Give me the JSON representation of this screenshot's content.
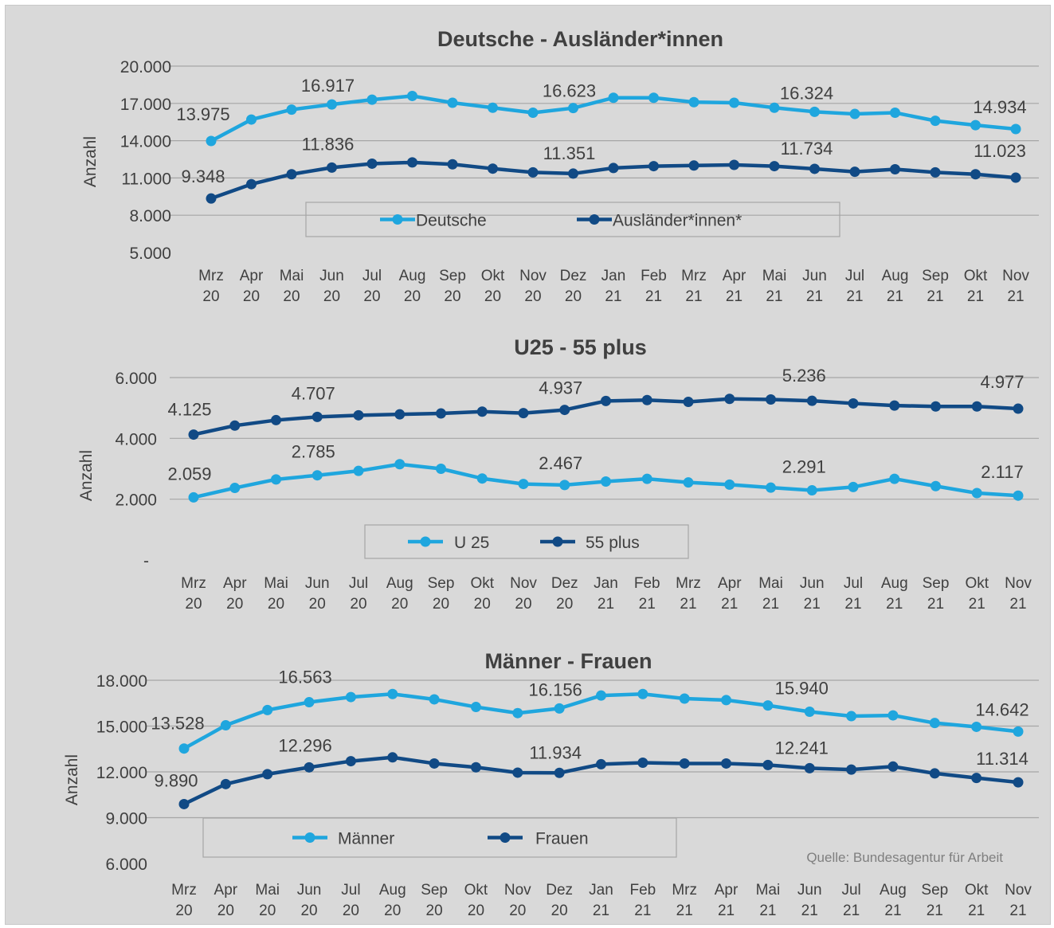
{
  "source_note": "Quelle: Bundesagentur für Arbeit",
  "colors": {
    "light": "#1fa6de",
    "dark": "#114a85",
    "grid": "#a6a6a6",
    "text": "#404040"
  },
  "chart_data": [
    {
      "type": "line",
      "title": "Deutsche - Ausländer*innen",
      "ylabel": "Anzahl",
      "ylim": [
        5000,
        20000
      ],
      "yticks": [
        "5.000",
        "8.000",
        "11.000",
        "14.000",
        "17.000",
        "20.000"
      ],
      "ytick_values": [
        5000,
        8000,
        11000,
        14000,
        17000,
        20000
      ],
      "categories": [
        [
          "Mrz",
          "20"
        ],
        [
          "Apr",
          "20"
        ],
        [
          "Mai",
          "20"
        ],
        [
          "Jun",
          "20"
        ],
        [
          "Jul",
          "20"
        ],
        [
          "Aug",
          "20"
        ],
        [
          "Sep",
          "20"
        ],
        [
          "Okt",
          "20"
        ],
        [
          "Nov",
          "20"
        ],
        [
          "Dez",
          "20"
        ],
        [
          "Jan",
          "21"
        ],
        [
          "Feb",
          "21"
        ],
        [
          "Mrz",
          "21"
        ],
        [
          "Apr",
          "21"
        ],
        [
          "Mai",
          "21"
        ],
        [
          "Jun",
          "21"
        ],
        [
          "Jul",
          "21"
        ],
        [
          "Aug",
          "21"
        ],
        [
          "Sep",
          "21"
        ],
        [
          "Okt",
          "21"
        ],
        [
          "Nov",
          "21"
        ]
      ],
      "grid": true,
      "legend": "bottom-center",
      "series": [
        {
          "name": "Deutsche",
          "color": "light",
          "values": [
            13975,
            15700,
            16500,
            16917,
            17300,
            17600,
            17050,
            16650,
            16250,
            16623,
            17450,
            17450,
            17100,
            17050,
            16650,
            16324,
            16150,
            16250,
            15600,
            15250,
            14934
          ],
          "labels": [
            {
              "i": 0,
              "text": "13.975"
            },
            {
              "i": 3,
              "text": "16.917"
            },
            {
              "i": 9,
              "text": "16.623"
            },
            {
              "i": 15,
              "text": "16.324"
            },
            {
              "i": 20,
              "text": "14.934"
            }
          ]
        },
        {
          "name": "Ausländer*innen*",
          "color": "dark",
          "values": [
            9348,
            10500,
            11300,
            11836,
            12150,
            12250,
            12100,
            11750,
            11450,
            11351,
            11800,
            11950,
            12000,
            12050,
            11950,
            11734,
            11500,
            11700,
            11450,
            11300,
            11023
          ],
          "labels": [
            {
              "i": 0,
              "text": "9.348"
            },
            {
              "i": 3,
              "text": "11.836"
            },
            {
              "i": 9,
              "text": "11.351"
            },
            {
              "i": 15,
              "text": "11.734"
            },
            {
              "i": 20,
              "text": "11.023"
            }
          ]
        }
      ]
    },
    {
      "type": "line",
      "title": "U25 - 55 plus",
      "ylabel": "Anzahl",
      "ylim": [
        0,
        6000
      ],
      "yticks": [
        "-",
        "2.000",
        "4.000",
        "6.000"
      ],
      "ytick_values": [
        0,
        2000,
        4000,
        6000
      ],
      "categories": [
        [
          "Mrz",
          "20"
        ],
        [
          "Apr",
          "20"
        ],
        [
          "Mai",
          "20"
        ],
        [
          "Jun",
          "20"
        ],
        [
          "Jul",
          "20"
        ],
        [
          "Aug",
          "20"
        ],
        [
          "Sep",
          "20"
        ],
        [
          "Okt",
          "20"
        ],
        [
          "Nov",
          "20"
        ],
        [
          "Dez",
          "20"
        ],
        [
          "Jan",
          "21"
        ],
        [
          "Feb",
          "21"
        ],
        [
          "Mrz",
          "21"
        ],
        [
          "Apr",
          "21"
        ],
        [
          "Mai",
          "21"
        ],
        [
          "Jun",
          "21"
        ],
        [
          "Jul",
          "21"
        ],
        [
          "Aug",
          "21"
        ],
        [
          "Sep",
          "21"
        ],
        [
          "Okt",
          "21"
        ],
        [
          "Nov",
          "21"
        ]
      ],
      "grid": true,
      "legend": "bottom-center",
      "series": [
        {
          "name": "U 25",
          "color": "light",
          "values": [
            2059,
            2370,
            2650,
            2785,
            2930,
            3150,
            3000,
            2680,
            2500,
            2467,
            2580,
            2670,
            2550,
            2480,
            2380,
            2291,
            2400,
            2670,
            2430,
            2200,
            2117
          ],
          "labels": [
            {
              "i": 0,
              "text": "2.059"
            },
            {
              "i": 3,
              "text": "2.785"
            },
            {
              "i": 9,
              "text": "2.467"
            },
            {
              "i": 15,
              "text": "2.291"
            },
            {
              "i": 20,
              "text": "2.117"
            }
          ]
        },
        {
          "name": "55 plus",
          "color": "dark",
          "values": [
            4125,
            4420,
            4600,
            4707,
            4760,
            4790,
            4820,
            4880,
            4830,
            4937,
            5230,
            5260,
            5200,
            5300,
            5280,
            5236,
            5150,
            5080,
            5050,
            5050,
            4977
          ],
          "labels": [
            {
              "i": 0,
              "text": "4.125"
            },
            {
              "i": 3,
              "text": "4.707"
            },
            {
              "i": 9,
              "text": "4.937"
            },
            {
              "i": 15,
              "text": "5.236"
            },
            {
              "i": 20,
              "text": "4.977"
            }
          ]
        }
      ]
    },
    {
      "type": "line",
      "title": "Männer - Frauen",
      "ylabel": "Anzahl",
      "ylim": [
        6000,
        18000
      ],
      "yticks": [
        "6.000",
        "9.000",
        "12.000",
        "15.000",
        "18.000"
      ],
      "ytick_values": [
        6000,
        9000,
        12000,
        15000,
        18000
      ],
      "categories": [
        [
          "Mrz",
          "20"
        ],
        [
          "Apr",
          "20"
        ],
        [
          "Mai",
          "20"
        ],
        [
          "Jun",
          "20"
        ],
        [
          "Jul",
          "20"
        ],
        [
          "Aug",
          "20"
        ],
        [
          "Sep",
          "20"
        ],
        [
          "Okt",
          "20"
        ],
        [
          "Nov",
          "20"
        ],
        [
          "Dez",
          "20"
        ],
        [
          "Jan",
          "21"
        ],
        [
          "Feb",
          "21"
        ],
        [
          "Mrz",
          "21"
        ],
        [
          "Apr",
          "21"
        ],
        [
          "Mai",
          "21"
        ],
        [
          "Jun",
          "21"
        ],
        [
          "Jul",
          "21"
        ],
        [
          "Aug",
          "21"
        ],
        [
          "Sep",
          "21"
        ],
        [
          "Okt",
          "21"
        ],
        [
          "Nov",
          "21"
        ]
      ],
      "grid": true,
      "legend": "bottom-center",
      "series": [
        {
          "name": "Männer",
          "color": "light",
          "values": [
            13528,
            15050,
            16050,
            16563,
            16900,
            17100,
            16750,
            16250,
            15850,
            16156,
            17000,
            17100,
            16800,
            16700,
            16350,
            15940,
            15650,
            15700,
            15200,
            14950,
            14642
          ],
          "labels": [
            {
              "i": 0,
              "text": "13.528"
            },
            {
              "i": 3,
              "text": "16.563"
            },
            {
              "i": 9,
              "text": "16.156"
            },
            {
              "i": 15,
              "text": "15.940"
            },
            {
              "i": 20,
              "text": "14.642"
            }
          ]
        },
        {
          "name": "Frauen",
          "color": "dark",
          "values": [
            9890,
            11200,
            11850,
            12296,
            12700,
            12950,
            12550,
            12300,
            11950,
            11934,
            12500,
            12600,
            12550,
            12550,
            12450,
            12241,
            12150,
            12350,
            11900,
            11600,
            11314
          ],
          "labels": [
            {
              "i": 0,
              "text": "9.890"
            },
            {
              "i": 3,
              "text": "12.296"
            },
            {
              "i": 9,
              "text": "11.934"
            },
            {
              "i": 15,
              "text": "12.241"
            },
            {
              "i": 20,
              "text": "11.314"
            }
          ]
        }
      ]
    }
  ]
}
